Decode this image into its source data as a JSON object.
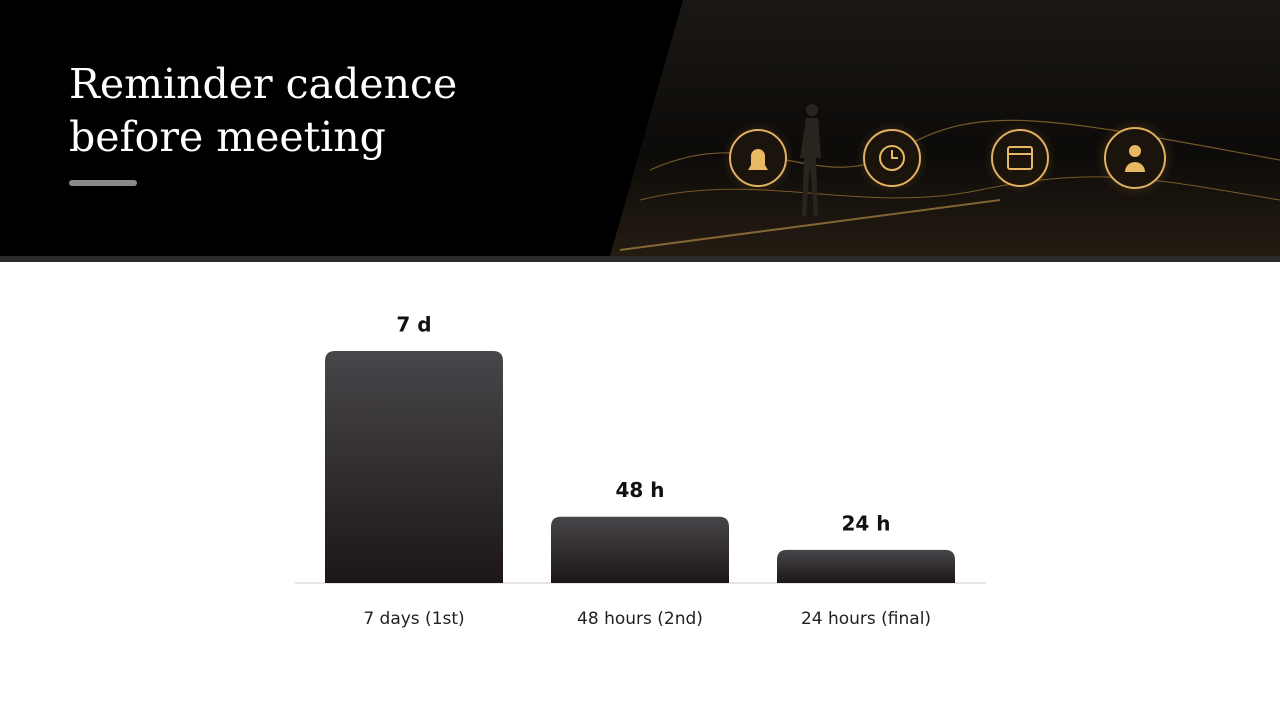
{
  "title": "Reminder cadence before meeting",
  "chart_data": {
    "type": "bar",
    "categories": [
      "7 days (1st)",
      "48 hours (2nd)",
      "24 hours (final)"
    ],
    "values": [
      168,
      48,
      24
    ],
    "value_labels": [
      "7 d",
      "48 h",
      "24 h"
    ]
  }
}
